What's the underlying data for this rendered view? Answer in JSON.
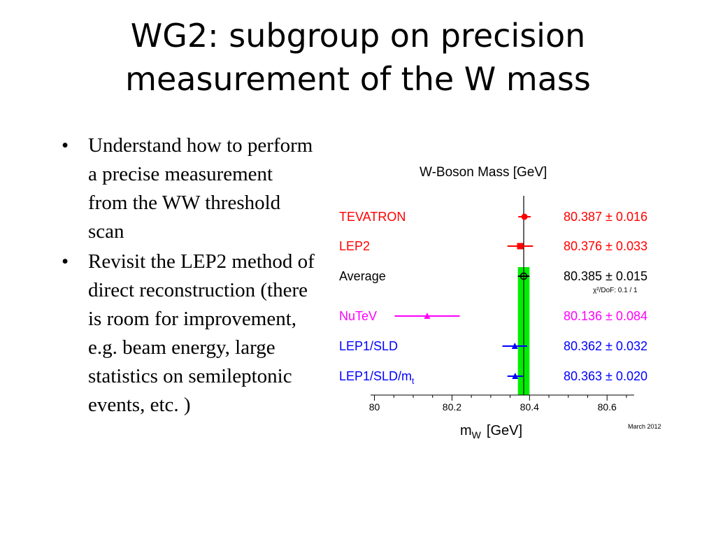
{
  "slide": {
    "title_line1": "WG2: subgroup on precision",
    "title_line2": "measurement of the W mass",
    "bullets": [
      "Understand how to perform a precise measurement from the WW threshold scan",
      "Revisit the LEP2 method of direct reconstruction (there is room for improvement, e.g. beam energy, large statistics on semileptonic events, etc.  )"
    ],
    "bullet_marker": "•"
  },
  "chart_data": {
    "type": "scatter",
    "title": "W-Boson Mass  [GeV]",
    "xlabel": "m",
    "xlabel_sub": "W",
    "xlabel_unit": "[GeV]",
    "xlim": [
      79.99,
      80.67
    ],
    "xticks": [
      80.0,
      80.2,
      80.4,
      80.6
    ],
    "xtick_labels": [
      "80",
      "80.2",
      "80.4",
      "80.6"
    ],
    "date_note": "March 2012",
    "chi2_note": "χ²/DoF: 0.1 / 1",
    "average_band": {
      "center": 80.385,
      "error": 0.015,
      "color": "#00ee00"
    },
    "reference_line": 80.385,
    "measurements": [
      {
        "label": "TEVATRON",
        "label_sub": "",
        "value": 80.387,
        "error": 0.016,
        "value_text": "80.387 ± 0.016",
        "color": "#ff0000",
        "marker": "circle-filled"
      },
      {
        "label": "LEP2",
        "label_sub": "",
        "value": 80.376,
        "error": 0.033,
        "value_text": "80.376 ± 0.033",
        "color": "#ff0000",
        "marker": "square-filled"
      },
      {
        "label": "Average",
        "label_sub": "",
        "value": 80.385,
        "error": 0.015,
        "value_text": "80.385 ± 0.015",
        "color": "#000000",
        "marker": "circle-open"
      },
      {
        "label": "NuTeV",
        "label_sub": "",
        "value": 80.136,
        "error": 0.084,
        "value_text": "80.136 ± 0.084",
        "color": "#ff00ff",
        "marker": "triangle-filled"
      },
      {
        "label": "LEP1/SLD",
        "label_sub": "",
        "value": 80.362,
        "error": 0.032,
        "value_text": "80.362 ± 0.032",
        "color": "#0000ff",
        "marker": "triangle-filled"
      },
      {
        "label": "LEP1/SLD/m",
        "label_sub": "t",
        "value": 80.363,
        "error": 0.02,
        "value_text": "80.363 ± 0.020",
        "color": "#0000ff",
        "marker": "triangle-filled"
      }
    ]
  }
}
